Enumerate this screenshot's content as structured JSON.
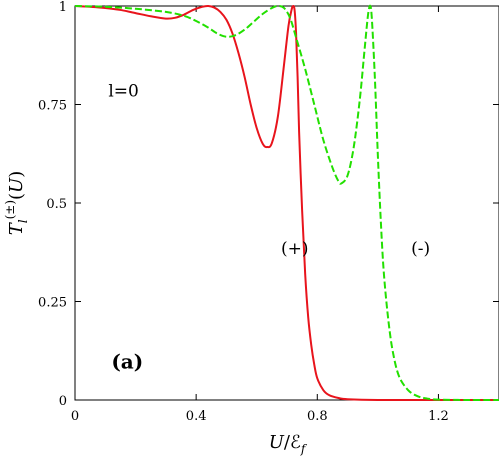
{
  "chart_data": {
    "type": "line",
    "xlabel": "U/ℰ_f",
    "ylabel": "T_l^(±)(U)",
    "xlim": [
      0,
      1.4
    ],
    "ylim": [
      0,
      1
    ],
    "xticks": [
      0,
      0.4,
      0.8,
      1.2
    ],
    "xtick_labels": [
      "0",
      "0.4",
      "0.8",
      "1.2"
    ],
    "yticks": [
      0,
      0.25,
      0.5,
      0.75,
      1
    ],
    "ytick_labels": [
      "0",
      "0.25",
      "0.5",
      "0.75",
      "1"
    ],
    "grid": false,
    "annotations": [
      {
        "text": "l=0",
        "x": 0.11,
        "y": 0.77,
        "style": "plain"
      },
      {
        "text": "(+)",
        "x": 0.68,
        "y": 0.37,
        "style": "plain"
      },
      {
        "text": "(-)",
        "x": 1.11,
        "y": 0.37,
        "style": "plain"
      },
      {
        "text": "(a)",
        "x": 0.12,
        "y": 0.08,
        "style": "bold"
      }
    ],
    "series": [
      {
        "name": "(+)",
        "color": "#e8141c",
        "dash": "solid",
        "points": [
          [
            0.0,
            1.0
          ],
          [
            0.05,
            0.998
          ],
          [
            0.1,
            0.995
          ],
          [
            0.15,
            0.99
          ],
          [
            0.2,
            0.982
          ],
          [
            0.25,
            0.974
          ],
          [
            0.3,
            0.968
          ],
          [
            0.33,
            0.97
          ],
          [
            0.36,
            0.978
          ],
          [
            0.39,
            0.99
          ],
          [
            0.42,
            0.998
          ],
          [
            0.44,
            1.0
          ],
          [
            0.46,
            0.996
          ],
          [
            0.48,
            0.985
          ],
          [
            0.5,
            0.965
          ],
          [
            0.52,
            0.93
          ],
          [
            0.54,
            0.88
          ],
          [
            0.56,
            0.82
          ],
          [
            0.58,
            0.75
          ],
          [
            0.6,
            0.69
          ],
          [
            0.62,
            0.65
          ],
          [
            0.635,
            0.642
          ],
          [
            0.65,
            0.652
          ],
          [
            0.67,
            0.72
          ],
          [
            0.69,
            0.85
          ],
          [
            0.705,
            0.95
          ],
          [
            0.715,
            0.99
          ],
          [
            0.72,
            1.0
          ],
          [
            0.725,
            0.99
          ],
          [
            0.73,
            0.93
          ],
          [
            0.735,
            0.82
          ],
          [
            0.74,
            0.68
          ],
          [
            0.75,
            0.48
          ],
          [
            0.76,
            0.32
          ],
          [
            0.77,
            0.21
          ],
          [
            0.78,
            0.14
          ],
          [
            0.79,
            0.09
          ],
          [
            0.8,
            0.055
          ],
          [
            0.82,
            0.025
          ],
          [
            0.84,
            0.012
          ],
          [
            0.87,
            0.005
          ],
          [
            0.9,
            0.002
          ],
          [
            1.0,
            0.0
          ],
          [
            1.2,
            0.0
          ],
          [
            1.4,
            0.0
          ]
        ]
      },
      {
        "name": "(-)",
        "color": "#22e000",
        "dash": "dashed",
        "points": [
          [
            0.0,
            1.0
          ],
          [
            0.1,
            0.998
          ],
          [
            0.2,
            0.993
          ],
          [
            0.3,
            0.985
          ],
          [
            0.36,
            0.975
          ],
          [
            0.4,
            0.962
          ],
          [
            0.44,
            0.945
          ],
          [
            0.47,
            0.93
          ],
          [
            0.5,
            0.922
          ],
          [
            0.53,
            0.926
          ],
          [
            0.56,
            0.94
          ],
          [
            0.59,
            0.96
          ],
          [
            0.62,
            0.98
          ],
          [
            0.65,
            0.995
          ],
          [
            0.67,
            1.0
          ],
          [
            0.69,
            0.995
          ],
          [
            0.71,
            0.97
          ],
          [
            0.73,
            0.92
          ],
          [
            0.76,
            0.84
          ],
          [
            0.79,
            0.75
          ],
          [
            0.82,
            0.66
          ],
          [
            0.85,
            0.59
          ],
          [
            0.87,
            0.555
          ],
          [
            0.88,
            0.55
          ],
          [
            0.9,
            0.57
          ],
          [
            0.92,
            0.64
          ],
          [
            0.94,
            0.76
          ],
          [
            0.955,
            0.88
          ],
          [
            0.965,
            0.96
          ],
          [
            0.97,
            0.99
          ],
          [
            0.975,
            1.0
          ],
          [
            0.98,
            0.97
          ],
          [
            0.99,
            0.82
          ],
          [
            1.0,
            0.62
          ],
          [
            1.01,
            0.45
          ],
          [
            1.02,
            0.32
          ],
          [
            1.035,
            0.2
          ],
          [
            1.05,
            0.12
          ],
          [
            1.07,
            0.06
          ],
          [
            1.1,
            0.025
          ],
          [
            1.13,
            0.01
          ],
          [
            1.16,
            0.004
          ],
          [
            1.2,
            0.001
          ],
          [
            1.3,
            0.0
          ],
          [
            1.4,
            0.0
          ]
        ]
      }
    ]
  }
}
